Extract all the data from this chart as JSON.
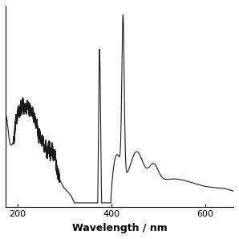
{
  "title": "",
  "xlabel": "Wavelength / nm",
  "ylabel": "",
  "xlim": [
    175,
    660
  ],
  "ylim": [
    -0.02,
    1.05
  ],
  "xticks": [
    200,
    400,
    600
  ],
  "background_color": "#ffffff",
  "line_color": "#1a1a1a",
  "line_width": 0.8
}
